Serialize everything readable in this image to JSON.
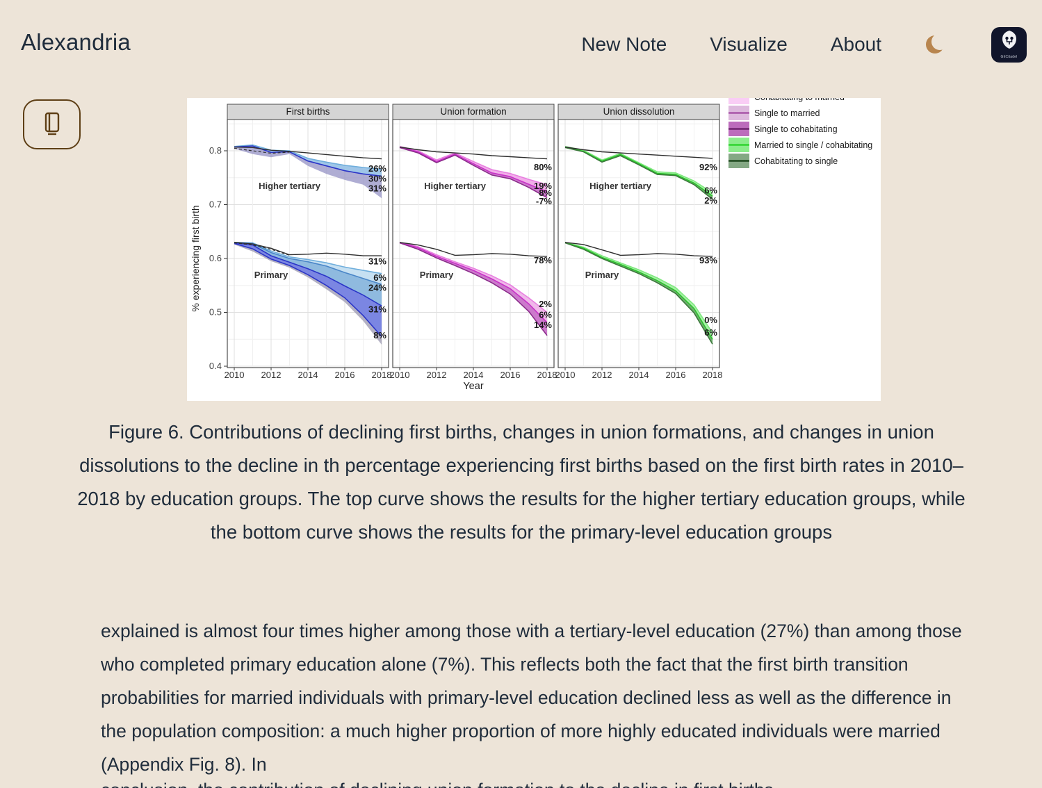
{
  "header": {
    "brand": "Alexandria",
    "nav": [
      {
        "label": "New Note"
      },
      {
        "label": "Visualize"
      },
      {
        "label": "About"
      }
    ],
    "logo_text": "GitCitadel",
    "moon_color": "#B8854E",
    "logo_bg": "#11152B"
  },
  "figure": {
    "caption": "Figure 6. Contributions of declining first births, changes in union formations, and changes in union dissolutions to the decline in th percentage experiencing first births based on the first birth rates in 2010–2018 by education groups. The top curve shows the results for the higher tertiary education groups, while the bottom curve shows the results for the primary-level education groups"
  },
  "article": {
    "paragraph": "explained is almost four times higher among those with a tertiary-level education (27%) than among those who completed primary education alone (7%). This reflects both the fact that the first birth transition probabilities for married individuals with primary-level education declined less as well as the difference in the population composition: a much higher proportion of more highly educated individuals were married (Appendix Fig. 8). In",
    "clipped_line": "conclusion, the contribution of declining union formation to the decline in first births"
  },
  "chart_data": {
    "type": "line",
    "x": [
      2010,
      2011,
      2012,
      2013,
      2014,
      2015,
      2016,
      2017,
      2018
    ],
    "xticks": [
      2010,
      2012,
      2014,
      2016,
      2018
    ],
    "yticks": [
      0.4,
      0.5,
      0.6,
      0.7,
      0.8
    ],
    "ylim": [
      0.4,
      0.858
    ],
    "xlabel": "Year",
    "ylabel": "% experiencing first birth",
    "observed_color": "#2E2E2E",
    "panels": [
      {
        "title": "First births",
        "groups": [
          {
            "label": "Higher tertiary",
            "label_pos": {
              "year": 2013.0,
              "value": 0.734
            },
            "observed": [
              0.807,
              0.806,
              0.801,
              0.799,
              0.796,
              0.793,
              0.79,
              0.787,
              0.785
            ],
            "dashed": [
              0.8045,
              0.8,
              0.7955,
              0.7975
            ],
            "boundaries": [
              {
                "values": [
                  0.808,
                  0.811,
                  0.801,
                  0.8,
                  0.786,
                  0.779,
                  0.773,
                  0.769,
                  0.766
                ],
                "color": "#6FAEDC"
              },
              {
                "values": [
                  0.807,
                  0.809,
                  0.797,
                  0.798,
                  0.781,
                  0.772,
                  0.763,
                  0.757,
                  0.753
                ],
                "color": "#2B35C8"
              },
              {
                "values": [
                  0.804,
                  0.794,
                  0.788,
                  0.794,
                  0.772,
                  0.757,
                  0.746,
                  0.737,
                  0.712
                ],
                "color": null
              }
            ],
            "bands": [
              "#9FC6E8",
              "rgba(148,146,196,0.75)"
            ],
            "end_labels": [
              {
                "text": "26%",
                "value": 0.7665
              },
              {
                "text": "30%",
                "value": 0.748
              },
              {
                "text": "31%",
                "value": 0.73
              }
            ]
          },
          {
            "label": "Primary",
            "label_pos": {
              "year": 2012.0,
              "value": 0.569
            },
            "observed": [
              0.63,
              0.627,
              0.619,
              0.607,
              0.608,
              0.61,
              0.608,
              0.605,
              0.605
            ],
            "dashed": [
              0.629,
              0.625,
              0.617,
              0.606
            ],
            "boundaries": [
              {
                "values": [
                  0.63,
                  0.629,
                  0.614,
                  0.603,
                  0.598,
                  0.592,
                  0.584,
                  0.578,
                  0.572
                ],
                "color": "#6FAEDC"
              },
              {
                "values": [
                  0.63,
                  0.628,
                  0.611,
                  0.6,
                  0.594,
                  0.586,
                  0.574,
                  0.563,
                  0.552
                ],
                "color": "#4A86C8"
              },
              {
                "values": [
                  0.629,
                  0.625,
                  0.605,
                  0.593,
                  0.581,
                  0.567,
                  0.549,
                  0.532,
                  0.512
                ],
                "color": "#2B35C8"
              },
              {
                "values": [
                  0.628,
                  0.618,
                  0.599,
                  0.587,
                  0.57,
                  0.55,
                  0.527,
                  0.494,
                  0.455
                ],
                "color": "#2B35C8"
              },
              {
                "values": [
                  0.626,
                  0.613,
                  0.595,
                  0.583,
                  0.565,
                  0.543,
                  0.519,
                  0.484,
                  0.44
                ],
                "color": null
              }
            ],
            "bands": [
              "#C6E0F2",
              "#8FBADF",
              "#7B86E2",
              "rgba(160,157,180,0.8)"
            ],
            "end_labels": [
              {
                "text": "31%",
                "value": 0.594
              },
              {
                "text": "6%",
                "value": 0.564
              },
              {
                "text": "24%",
                "value": 0.545
              },
              {
                "text": "31%",
                "value": 0.505
              },
              {
                "text": "8%",
                "value": 0.457
              }
            ]
          }
        ]
      },
      {
        "title": "Union formation",
        "groups": [
          {
            "label": "Higher tertiary",
            "label_pos": {
              "year": 2013.0,
              "value": 0.734
            },
            "observed": [
              0.807,
              0.802,
              0.798,
              0.796,
              0.794,
              0.791,
              0.789,
              0.787,
              0.785
            ],
            "boundaries": [
              {
                "values": [
                  0.808,
                  0.8,
                  0.783,
                  0.796,
                  0.78,
                  0.765,
                  0.758,
                  0.747,
                  0.737
                ],
                "color": "#E87FE0"
              },
              {
                "values": [
                  0.807,
                  0.798,
                  0.78,
                  0.794,
                  0.776,
                  0.759,
                  0.752,
                  0.738,
                  0.724
                ],
                "color": "#C832C8"
              },
              {
                "values": [
                  0.806,
                  0.796,
                  0.778,
                  0.792,
                  0.773,
                  0.755,
                  0.748,
                  0.732,
                  0.713
                ],
                "color": "#8A2D8A"
              }
            ],
            "bands": [
              "#F2AEEA",
              "#CC7ACC"
            ],
            "end_labels": [
              {
                "text": "80%",
                "value": 0.769
              },
              {
                "text": "19%",
                "value": 0.734
              },
              {
                "text": "8%",
                "value": 0.721
              },
              {
                "text": "-7%",
                "value": 0.706
              }
            ]
          },
          {
            "label": "Primary",
            "label_pos": {
              "year": 2012.0,
              "value": 0.569
            },
            "observed": [
              0.63,
              0.625,
              0.617,
              0.606,
              0.607,
              0.609,
              0.608,
              0.605,
              0.604
            ],
            "boundaries": [
              {
                "values": [
                  0.63,
                  0.622,
                  0.607,
                  0.594,
                  0.582,
                  0.568,
                  0.551,
                  0.527,
                  0.5
                ],
                "color": "#E87FE0"
              },
              {
                "values": [
                  0.63,
                  0.62,
                  0.604,
                  0.591,
                  0.578,
                  0.562,
                  0.544,
                  0.516,
                  0.481
                ],
                "color": "#C832C8"
              },
              {
                "values": [
                  0.629,
                  0.617,
                  0.601,
                  0.587,
                  0.572,
                  0.555,
                  0.534,
                  0.502,
                  0.457
                ],
                "color": "#8A2D8A"
              }
            ],
            "bands": [
              "#F0B8EA",
              "#CC7ACC"
            ],
            "end_labels": [
              {
                "text": "78%",
                "value": 0.596
              },
              {
                "text": "2%",
                "value": 0.515
              },
              {
                "text": "6%",
                "value": 0.495
              },
              {
                "text": "14%",
                "value": 0.476
              }
            ]
          }
        ]
      },
      {
        "title": "Union dissolution",
        "groups": [
          {
            "label": "Higher tertiary",
            "label_pos": {
              "year": 2013.0,
              "value": 0.734
            },
            "observed": [
              0.807,
              0.802,
              0.798,
              0.796,
              0.794,
              0.792,
              0.79,
              0.788,
              0.786
            ],
            "boundaries": [
              {
                "values": [
                  0.808,
                  0.801,
                  0.783,
                  0.795,
                  0.778,
                  0.761,
                  0.759,
                  0.744,
                  0.722
                ],
                "color": "#7FE87F"
              },
              {
                "values": [
                  0.807,
                  0.799,
                  0.781,
                  0.793,
                  0.776,
                  0.758,
                  0.756,
                  0.74,
                  0.716
                ],
                "color": "#2DC42D"
              },
              {
                "values": [
                  0.806,
                  0.798,
                  0.779,
                  0.791,
                  0.774,
                  0.756,
                  0.754,
                  0.737,
                  0.71
                ],
                "color": "#3D7A3D"
              }
            ],
            "bands": [
              "#A8F0A8",
              "#6FAE6F"
            ],
            "end_labels": [
              {
                "text": "92%",
                "value": 0.769
              },
              {
                "text": "6%",
                "value": 0.726
              },
              {
                "text": "2%",
                "value": 0.707
              }
            ]
          },
          {
            "label": "Primary",
            "label_pos": {
              "year": 2012.0,
              "value": 0.569
            },
            "observed": [
              0.63,
              0.626,
              0.616,
              0.606,
              0.607,
              0.609,
              0.608,
              0.605,
              0.604
            ],
            "boundaries": [
              {
                "values": [
                  0.63,
                  0.621,
                  0.605,
                  0.592,
                  0.579,
                  0.564,
                  0.546,
                  0.514,
                  0.462
                ],
                "color": "#7FE87F"
              },
              {
                "values": [
                  0.63,
                  0.619,
                  0.602,
                  0.589,
                  0.575,
                  0.559,
                  0.54,
                  0.507,
                  0.45
                ],
                "color": "#2DC42D"
              },
              {
                "values": [
                  0.629,
                  0.617,
                  0.6,
                  0.586,
                  0.572,
                  0.555,
                  0.535,
                  0.499,
                  0.441
                ],
                "color": "#3D7A3D"
              }
            ],
            "bands": [
              "#A8F0A8",
              "#6FAE6F"
            ],
            "end_labels": [
              {
                "text": "93%",
                "value": 0.596
              },
              {
                "text": "0%",
                "value": 0.485
              },
              {
                "text": "6%",
                "value": 0.462
              }
            ]
          }
        ]
      }
    ],
    "legend": {
      "items": [
        {
          "label": "Cohabitating to married",
          "fill": "#F9CDF5",
          "line": "#EE8FE2",
          "clipped": true
        },
        {
          "label": "Single to married",
          "fill": "#DDB9DD",
          "line": "#A855A8"
        },
        {
          "label": "Single to cohabitating",
          "fill": "#BC6CBC",
          "line": "#6E256E"
        },
        {
          "label": "Married to single / cohabitating",
          "fill": "#8BED8B",
          "line": "#2FD42F"
        },
        {
          "label": "Cohabitating to single",
          "fill": "#84A884",
          "line": "#1E481E"
        }
      ]
    }
  }
}
